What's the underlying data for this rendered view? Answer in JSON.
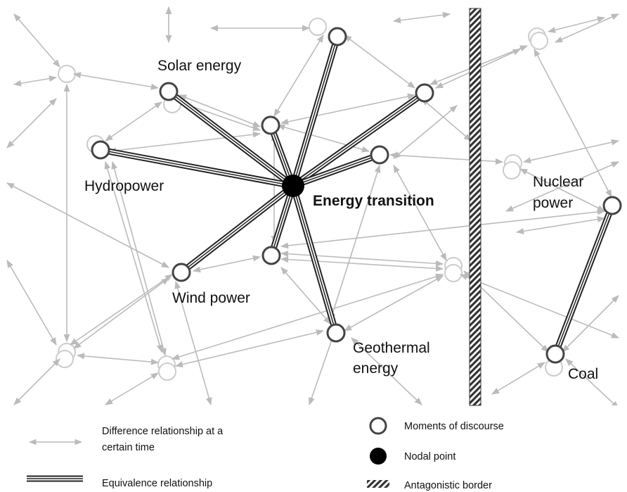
{
  "nodes": [
    {
      "label": [
        "Solar energy"
      ]
    },
    {
      "label": [
        "Hydropower"
      ]
    },
    {
      "label": [
        "Energy transition"
      ]
    },
    {
      "label": [
        "Wind power"
      ]
    },
    {
      "label": [
        "Geothermal",
        "energy"
      ]
    },
    {
      "label": [
        "Nuclear",
        "power"
      ]
    },
    {
      "label": [
        "Coal"
      ]
    }
  ],
  "legend": [
    {
      "label": [
        "Difference relationship at a",
        "certain time"
      ]
    },
    {
      "label": [
        "Equivalence relationship"
      ]
    },
    {
      "label": [
        "Moments of discourse"
      ]
    },
    {
      "label": [
        "Nodal point"
      ]
    },
    {
      "label": [
        "Antagonistic border"
      ]
    }
  ]
}
